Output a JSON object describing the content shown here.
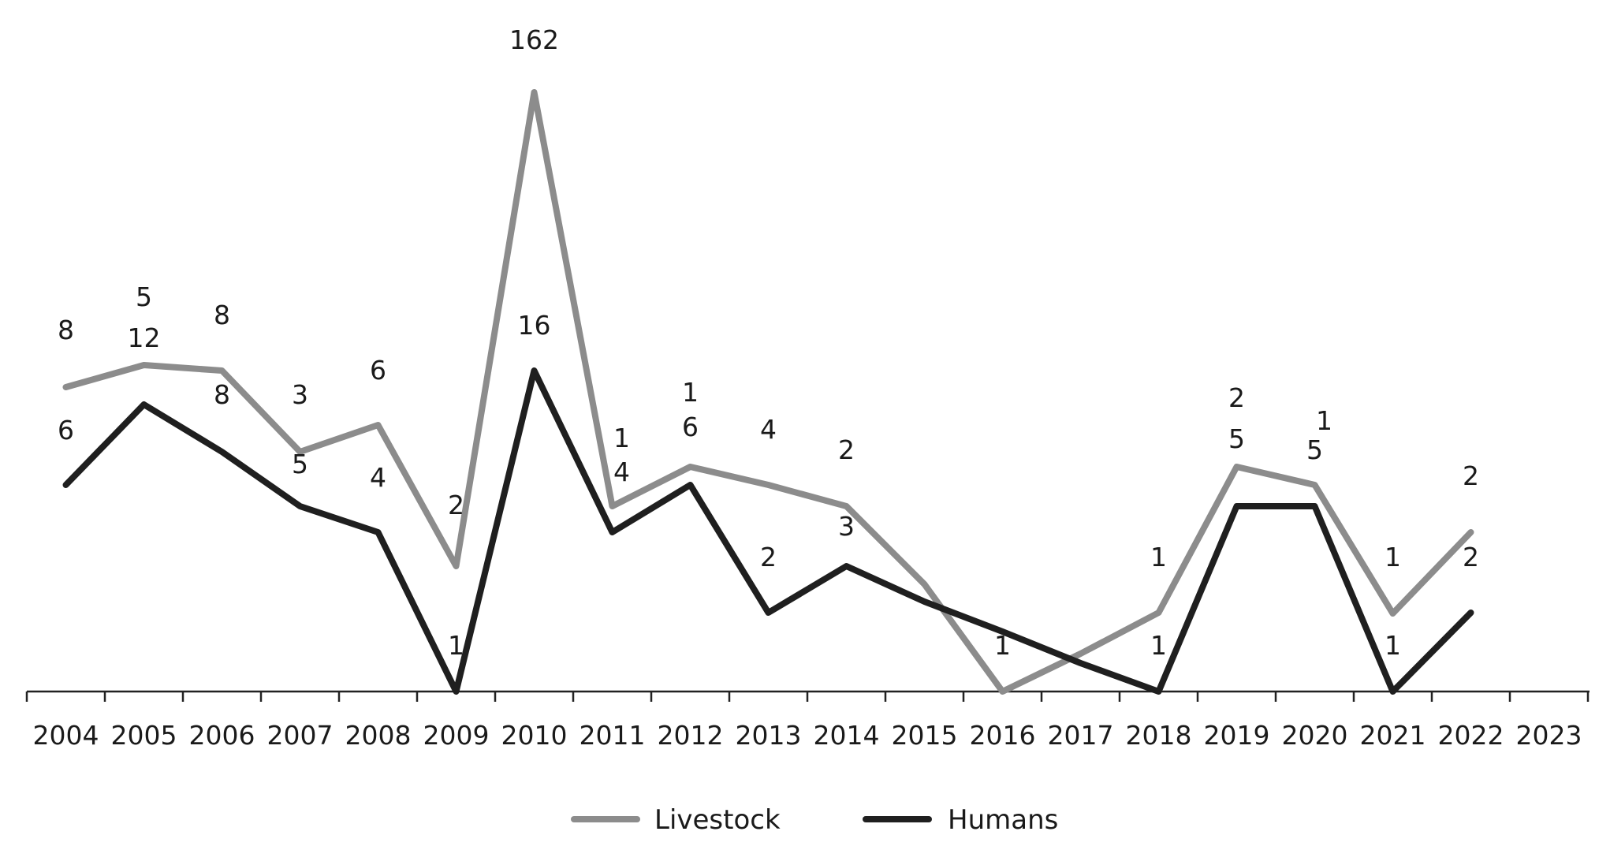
{
  "chart_data": {
    "type": "line",
    "title": "",
    "xlabel": "",
    "ylabel": "",
    "categories": [
      "2004",
      "2005",
      "2006",
      "2007",
      "2008",
      "2009",
      "2010",
      "2011",
      "2012",
      "2013",
      "2014",
      "2015",
      "2016",
      "2017",
      "2018",
      "2019",
      "2020",
      "2021",
      "2022",
      "2023"
    ],
    "series": [
      {
        "name": "Livestock",
        "color": "#8c8c8c",
        "values": [
          8,
          12,
          8,
          3,
          6,
          2,
          162,
          1,
          6,
          4,
          2,
          null,
          1,
          null,
          1,
          2,
          1,
          1,
          2,
          null
        ],
        "labels": [
          "8",
          "12",
          "8",
          "3",
          "6",
          "2",
          "162",
          "1",
          "6",
          "4",
          "2",
          "",
          "1",
          "",
          "1",
          "2",
          "1",
          "1",
          "2",
          ""
        ]
      },
      {
        "name": "Humans",
        "color": "#1f1f1f",
        "values": [
          6,
          5,
          8,
          5,
          4,
          1,
          16,
          4,
          1,
          2,
          3,
          null,
          null,
          null,
          1,
          5,
          5,
          1,
          2,
          null
        ],
        "labels": [
          "6",
          "5",
          "8",
          "5",
          "4",
          "1",
          "16",
          "4",
          "1",
          "2",
          "3",
          "",
          "",
          "",
          "1",
          "5",
          "5",
          "1",
          "2",
          ""
        ]
      }
    ],
    "legend": {
      "position": "bottom-center",
      "entries": [
        "Livestock",
        "Humans"
      ]
    }
  }
}
